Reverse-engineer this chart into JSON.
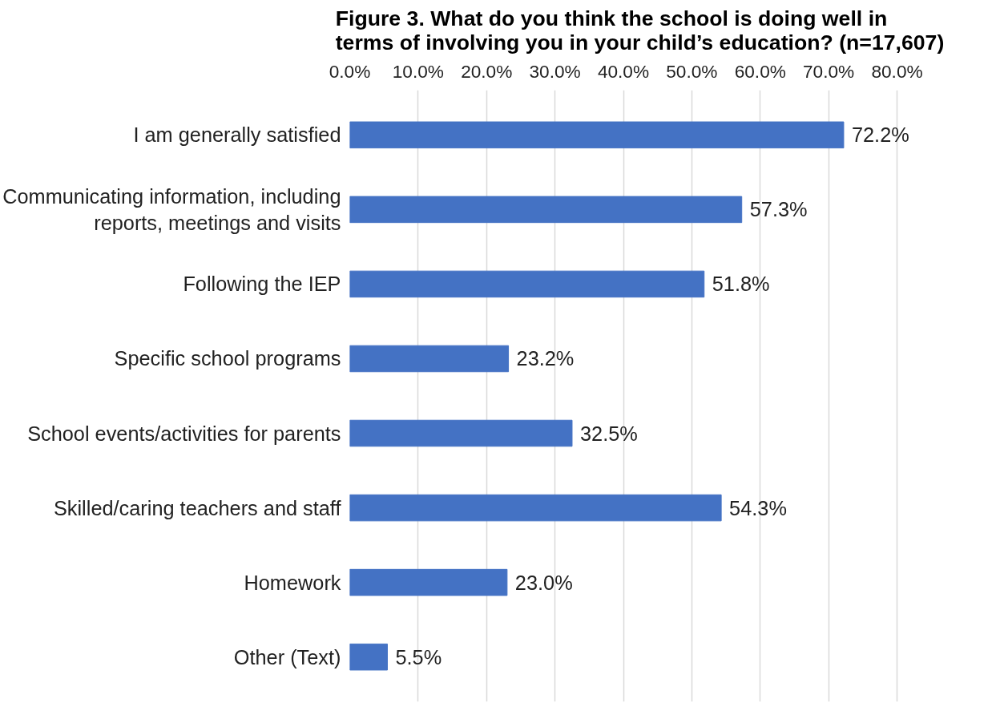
{
  "chart_data": {
    "type": "bar",
    "orientation": "horizontal",
    "title": "Figure 3. What do you think the school is doing well in terms of involving you in your child’s education? (n=17,607)",
    "categories": [
      "I am generally satisfied",
      "Communicating information, including reports, meetings and visits",
      "Following the IEP",
      "Specific school programs",
      "School events/activities for parents",
      "Skilled/caring teachers and staff",
      "Homework",
      "Other (Text)"
    ],
    "values": [
      72.2,
      57.3,
      51.8,
      23.2,
      32.5,
      54.3,
      23.0,
      5.5
    ],
    "value_labels": [
      "72.2%",
      "57.3%",
      "51.8%",
      "23.2%",
      "32.5%",
      "54.3%",
      "23.0%",
      "5.5%"
    ],
    "color": "#4472c4",
    "xlim": [
      0,
      80
    ],
    "xticks": [
      {
        "value": 0,
        "label": "0.0%"
      },
      {
        "value": 10,
        "label": "10.0%"
      },
      {
        "value": 20,
        "label": "20.0%"
      },
      {
        "value": 30,
        "label": "30.0%"
      },
      {
        "value": 40,
        "label": "40.0%"
      },
      {
        "value": 50,
        "label": "50.0%"
      },
      {
        "value": 60,
        "label": "60.0%"
      },
      {
        "value": 70,
        "label": "70.0%"
      },
      {
        "value": 80,
        "label": "80.0%"
      }
    ],
    "grid": "x"
  }
}
